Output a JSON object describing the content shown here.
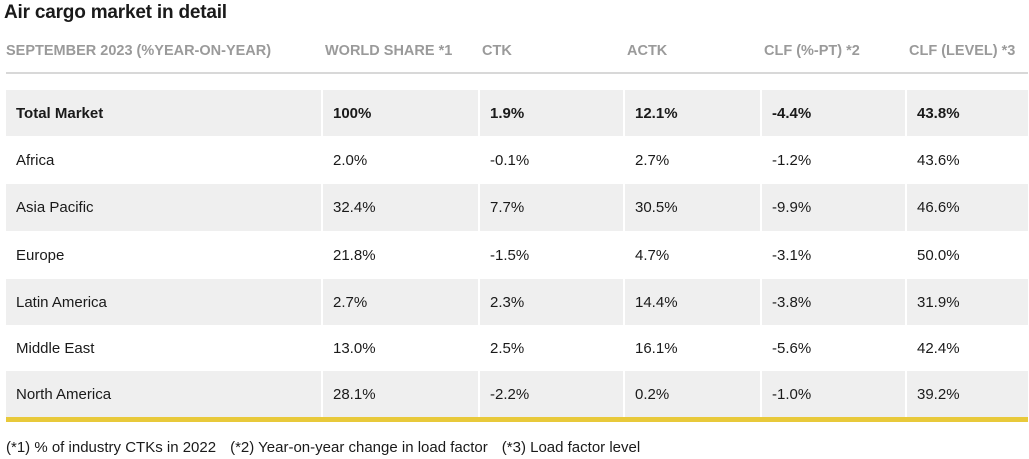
{
  "title": "Air cargo market in detail",
  "columns": [
    "SEPTEMBER 2023 (%YEAR-ON-YEAR)",
    "WORLD SHARE *1",
    "CTK",
    "ACTK",
    "CLF (%-PT) *2",
    "CLF (LEVEL) *3"
  ],
  "rows": [
    [
      "Total Market",
      "100%",
      "1.9%",
      "12.1%",
      "-4.4%",
      "43.8%"
    ],
    [
      "Africa",
      "2.0%",
      "-0.1%",
      "2.7%",
      "-1.2%",
      "43.6%"
    ],
    [
      "Asia Pacific",
      "32.4%",
      "7.7%",
      "30.5%",
      "-9.9%",
      "46.6%"
    ],
    [
      "Europe",
      "21.8%",
      "-1.5%",
      "4.7%",
      "-3.1%",
      "50.0%"
    ],
    [
      "Latin America",
      "2.7%",
      "2.3%",
      "14.4%",
      "-3.8%",
      "31.9%"
    ],
    [
      "Middle East",
      "13.0%",
      "2.5%",
      "16.1%",
      "-5.6%",
      "42.4%"
    ],
    [
      "North America",
      "28.1%",
      "-2.2%",
      "0.2%",
      "-1.0%",
      "39.2%"
    ]
  ],
  "footnotes": [
    "(*1) % of industry CTKs in 2022",
    "(*2) Year-on-year change in load factor",
    "(*3) Load factor level"
  ],
  "colors": {
    "accent": "#e8c93a",
    "row_shade": "#efefef",
    "header_text": "#9a9a9a"
  }
}
